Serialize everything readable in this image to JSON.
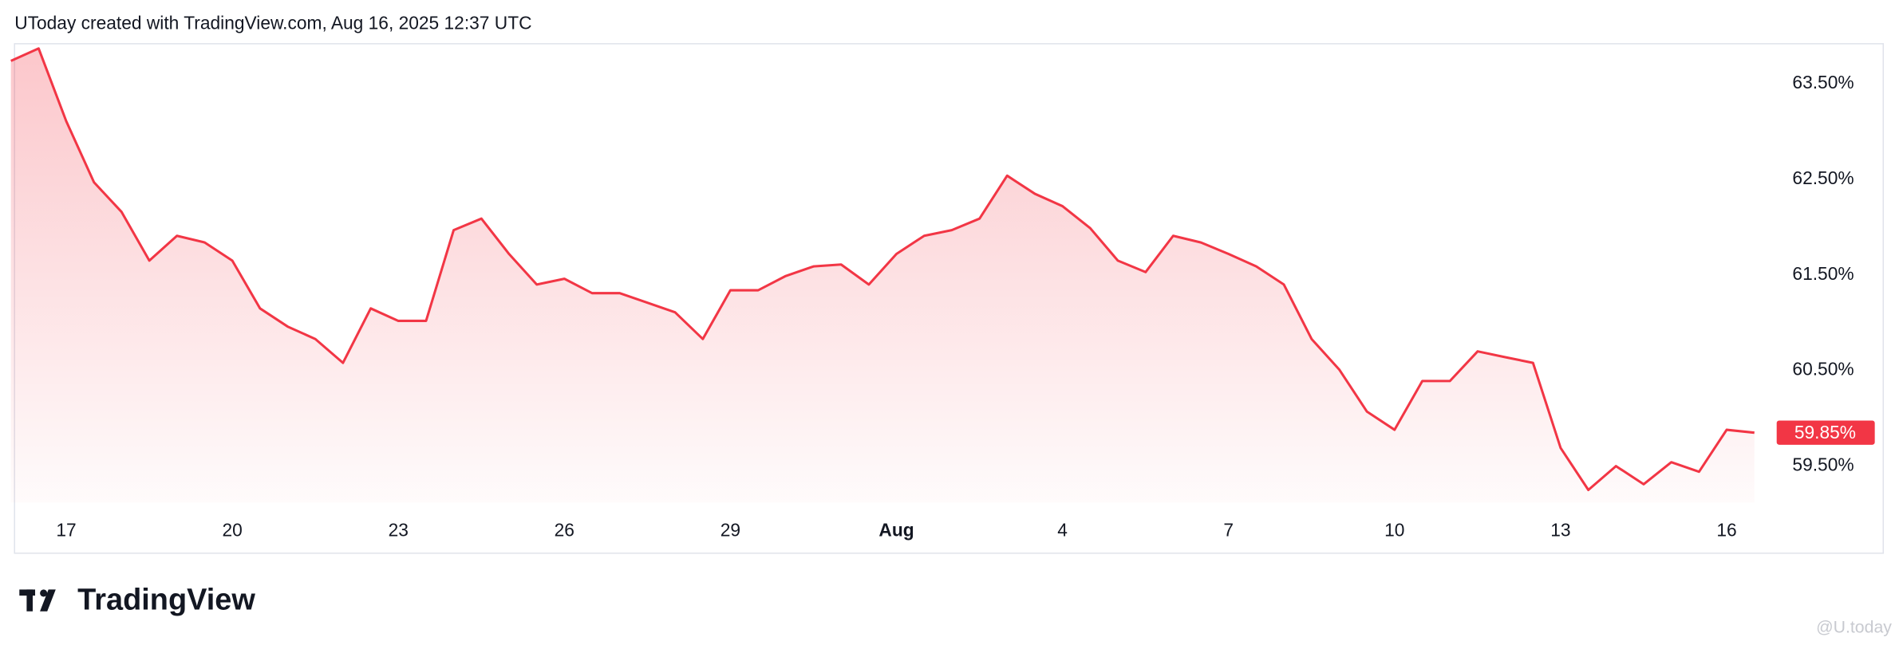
{
  "header": {
    "text": "UToday created with TradingView.com, Aug 16, 2025 12:37 UTC"
  },
  "chart_data": {
    "type": "area",
    "categories": [
      null,
      null,
      "17",
      null,
      null,
      null,
      null,
      null,
      "20",
      null,
      null,
      null,
      null,
      null,
      "23",
      null,
      null,
      null,
      null,
      null,
      "26",
      null,
      null,
      null,
      null,
      null,
      "29",
      null,
      null,
      null,
      null,
      null,
      "Aug",
      null,
      null,
      null,
      null,
      null,
      "4",
      null,
      null,
      null,
      null,
      null,
      "7",
      null,
      null,
      null,
      null,
      null,
      "10",
      null,
      null,
      null,
      null,
      null,
      "13",
      null,
      null,
      null,
      null,
      null,
      "16",
      null
    ],
    "series": [
      {
        "color": "#f23645",
        "values": [
          63.74,
          63.87,
          63.11,
          62.47,
          62.16,
          61.65,
          61.91,
          61.84,
          61.65,
          61.15,
          60.96,
          60.83,
          60.58,
          61.15,
          61.02,
          61.02,
          61.97,
          62.09,
          61.72,
          61.4,
          61.46,
          61.31,
          61.31,
          61.21,
          61.11,
          60.83,
          61.34,
          61.34,
          61.49,
          61.59,
          61.61,
          61.4,
          61.72,
          61.91,
          61.97,
          62.09,
          62.54,
          62.35,
          62.22,
          61.99,
          61.65,
          61.53,
          61.91,
          61.84,
          61.72,
          61.59,
          61.4,
          60.83,
          60.51,
          60.07,
          59.88,
          60.39,
          60.39,
          60.7,
          60.64,
          60.58,
          59.69,
          59.25,
          59.5,
          59.31,
          59.54,
          59.44,
          59.88,
          59.85
        ],
        "value_labels": [
          null,
          null,
          null,
          null,
          null,
          null,
          null,
          null,
          null,
          null,
          null,
          null,
          null,
          null,
          null,
          null,
          null,
          null,
          null,
          null,
          null,
          null,
          null,
          null,
          null,
          null,
          null,
          null,
          null,
          null,
          null,
          null,
          null,
          null,
          null,
          null,
          null,
          null,
          null,
          null,
          null,
          null,
          null,
          null,
          null,
          null,
          null,
          null,
          null,
          null,
          null,
          null,
          null,
          null,
          null,
          null,
          null,
          null,
          null,
          null,
          null,
          null,
          null,
          "59.85%"
        ]
      }
    ],
    "ylim": [
      59.12,
      63.92
    ],
    "yticks": [
      {
        "value": 59.5,
        "label": "59.50%"
      },
      {
        "value": 60.5,
        "label": "60.50%"
      },
      {
        "value": 61.5,
        "label": "61.50%"
      },
      {
        "value": 62.5,
        "label": "62.50%"
      },
      {
        "value": 63.5,
        "label": "63.50%"
      }
    ],
    "bold_category": "Aug"
  },
  "footer": {
    "logo": "TradingView",
    "watermark": "@U.today"
  }
}
